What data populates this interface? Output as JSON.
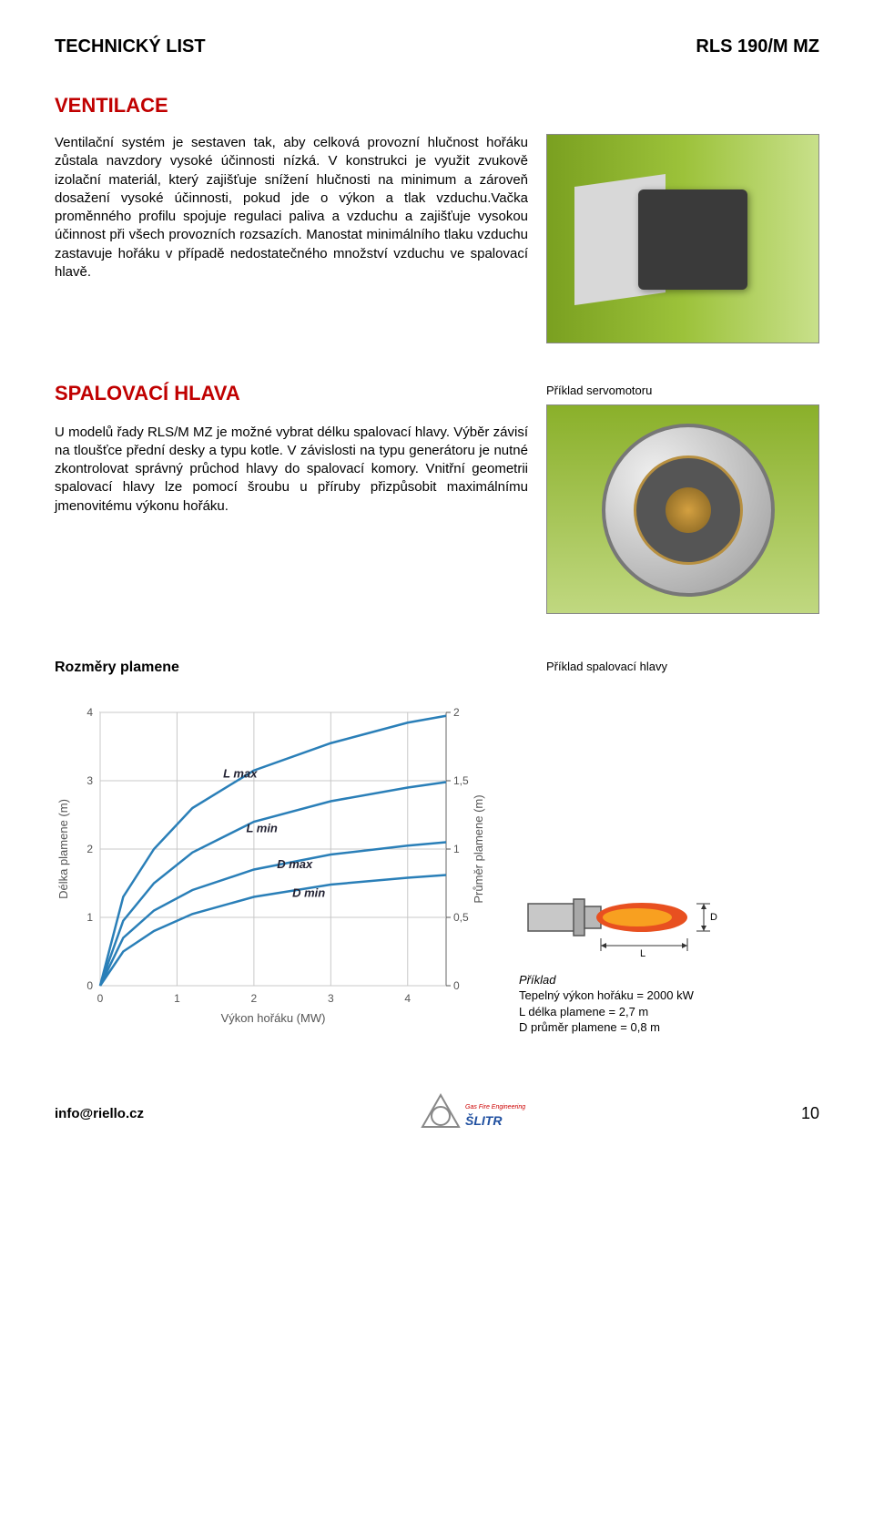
{
  "header": {
    "left": "TECHNICKÝ LIST",
    "right": "RLS 190/M MZ"
  },
  "section1": {
    "title": "VENTILACE",
    "body": "Ventilační systém je sestaven tak, aby celková provozní hlučnost hořáku zůstala navzdory vysoké účinnosti nízká. V konstrukci je využit zvukově izolační materiál, který zajišťuje snížení hlučnosti na minimum a zároveň dosažení vysoké účinnosti, pokud jde o výkon a tlak vzduchu.Vačka proměnného profilu spojuje regulaci paliva a vzduchu a zajišťuje vysokou účinnost při všech provozních rozsazích. Manostat minimálního tlaku vzduchu zastavuje hořáku v případě nedostatečného množství vzduchu ve spalovací hlavě."
  },
  "section2": {
    "title": "SPALOVACÍ HLAVA",
    "caption_servo": "Příklad servomotoru",
    "body": "U modelů řady RLS/M MZ je možné vybrat délku spalovací hlavy. Výběr závisí na tloušťce přední desky a typu kotle. V závislosti na typu generátoru je nutné zkontrolovat správný průchod hlavy do spalovací komory. Vnitřní geometrii spalovací hlavy lze pomocí šroubu u příruby přizpůsobit maximálnímu jmenovitému výkonu hořáku."
  },
  "chart_section": {
    "subtitle": "Rozměry plamene",
    "caption_head": "Příklad spalovací hlavy",
    "chart": {
      "type": "line",
      "xlabel": "Výkon hořáku (MW)",
      "ylabel_left": "Délka plamene (m)",
      "ylabel_right": "Průměr plamene (m)",
      "xlim": [
        0,
        4.5
      ],
      "ylim_left": [
        0,
        4
      ],
      "ylim_right": [
        0,
        2
      ],
      "xtick_step": 1,
      "ytick_left": [
        0,
        1,
        2,
        3,
        4
      ],
      "ytick_right": [
        0,
        0.5,
        1,
        1.5,
        2
      ],
      "background_color": "#ffffff",
      "grid_color": "#c8c8c8",
      "line_color": "#2a7fb8",
      "line_width": 2.5,
      "curves": [
        {
          "label": "L max",
          "label_x": 1.6,
          "label_y": 3.05,
          "points": [
            [
              0,
              0
            ],
            [
              0.3,
              1.3
            ],
            [
              0.7,
              2.0
            ],
            [
              1.2,
              2.6
            ],
            [
              2.0,
              3.15
            ],
            [
              3.0,
              3.55
            ],
            [
              4.0,
              3.85
            ],
            [
              4.5,
              3.95
            ]
          ]
        },
        {
          "label": "L min",
          "label_x": 1.9,
          "label_y": 2.25,
          "points": [
            [
              0,
              0
            ],
            [
              0.3,
              0.95
            ],
            [
              0.7,
              1.5
            ],
            [
              1.2,
              1.95
            ],
            [
              2.0,
              2.4
            ],
            [
              3.0,
              2.7
            ],
            [
              4.0,
              2.9
            ],
            [
              4.5,
              2.98
            ]
          ]
        },
        {
          "label": "D max",
          "label_x": 2.3,
          "label_y": 1.72,
          "points": [
            [
              0,
              0
            ],
            [
              0.3,
              0.7
            ],
            [
              0.7,
              1.1
            ],
            [
              1.2,
              1.4
            ],
            [
              2.0,
              1.7
            ],
            [
              3.0,
              1.92
            ],
            [
              4.0,
              2.05
            ],
            [
              4.5,
              2.1
            ]
          ]
        },
        {
          "label": "D min",
          "label_x": 2.5,
          "label_y": 1.3,
          "points": [
            [
              0,
              0
            ],
            [
              0.3,
              0.5
            ],
            [
              0.7,
              0.8
            ],
            [
              1.2,
              1.05
            ],
            [
              2.0,
              1.3
            ],
            [
              3.0,
              1.48
            ],
            [
              4.0,
              1.58
            ],
            [
              4.5,
              1.62
            ]
          ]
        }
      ]
    },
    "flame": {
      "body_color": "#c8c8c8",
      "flame_color_1": "#e85020",
      "flame_color_2": "#f8a020",
      "dim_l": "L",
      "dim_d": "D"
    },
    "example": {
      "title": "Příklad",
      "line1": "Tepelný výkon hořáku = 2000 kW",
      "line2": "L délka plamene = 2,7 m",
      "line3": "D průměr plamene = 0,8 m"
    }
  },
  "footer": {
    "email": "info@riello.cz",
    "logo_text": "Gas Fire Engineering",
    "logo_name": "ŠLITR",
    "page": "10"
  }
}
